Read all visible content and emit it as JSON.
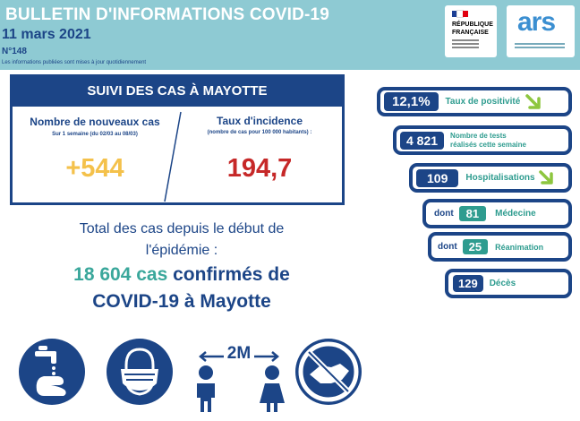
{
  "header": {
    "title": "BULLETIN D'INFORMATIONS COVID-19",
    "date": "11 mars 2021",
    "number": "N°148",
    "note": "Les informations publiées sont mises à jour quotidiennement",
    "logo_rf_line1": "RÉPUBLIQUE",
    "logo_rf_line2": "FRANÇAISE",
    "logo_ars": "ars"
  },
  "suivi": {
    "title": "SUIVI DES CAS À MAYOTTE",
    "new_cases_label": "Nombre de nouveaux cas",
    "new_cases_period": "Sur 1 semaine (du 02/03 au 08/03)",
    "new_cases_value": "+544",
    "incidence_label": "Taux d'incidence",
    "incidence_sub": "(nombre de cas pour 100 000 habitants) :",
    "incidence_value": "194,7"
  },
  "total": {
    "line1": "Total des cas depuis le début de",
    "line2": "l'épidémie :",
    "cases_count": "18 604 cas",
    "confirmed": "confirmés de",
    "place": "COVID-19 à Mayotte"
  },
  "indicators": {
    "positivity_value": "12,1%",
    "positivity_label": "Taux de positivité",
    "tests_value": "4 821",
    "tests_label_1": "Nombre de tests",
    "tests_label_2": "réalisés cette semaine",
    "hosp_value": "109",
    "hosp_label": "Hospitalisations",
    "dont": "dont",
    "medecine_value": "81",
    "medecine_label": "Médecine",
    "reanimation_value": "25",
    "reanimation_label": "Réanimation",
    "deces_value": "129",
    "deces_label": "Décès"
  },
  "gestures": {
    "distance_label": "2M"
  },
  "colors": {
    "navy": "#1c4587",
    "teal": "#2e9c8f",
    "header_bg": "#8ecad3",
    "yellow": "#f4c14b",
    "red": "#c62828",
    "arrow_green": "#8dc63f"
  }
}
